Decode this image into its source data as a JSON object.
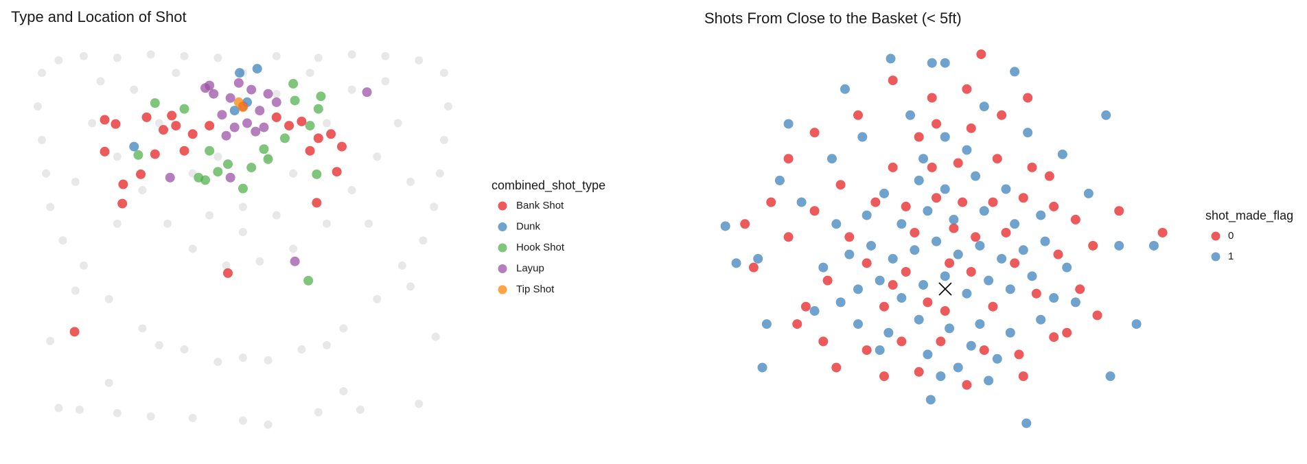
{
  "chart_data": [
    {
      "type": "scatter",
      "title": "Type and Location of Shot",
      "legend_title": "combined_shot_type",
      "legend": "right",
      "xlim": [
        -250,
        250
      ],
      "ylim": [
        -70,
        390
      ],
      "yreverse": true,
      "series": [
        {
          "color": "#bdbdbd",
          "x": [
            -240,
            -220,
            -190,
            -150,
            -110,
            -70,
            -30,
            40,
            90,
            130,
            170,
            210,
            240,
            -245,
            -240,
            -235,
            -230,
            -215,
            245,
            240,
            235,
            228,
            215,
            -190,
            -160,
            -120,
            -70,
            0,
            70,
            120,
            160,
            190,
            -200,
            200,
            -100,
            100,
            -30,
            30,
            -180,
            -150,
            -120,
            -90,
            -60,
            -20,
            20,
            60,
            100,
            130,
            160,
            185,
            -170,
            170,
            -100,
            100,
            -60,
            60,
            0,
            -30,
            30,
            -130,
            130,
            0,
            -40,
            40,
            -150,
            150,
            -200,
            200,
            -220,
            -195,
            -150,
            -110,
            -60,
            0,
            30,
            90,
            140,
            210,
            -160,
            120,
            230,
            -230,
            -40,
            40,
            0,
            -80,
            80
          ],
          "values": [
            -40,
            -55,
            -60,
            -58,
            -62,
            -60,
            -58,
            -60,
            -58,
            -62,
            -60,
            -55,
            -40,
            0,
            40,
            80,
            120,
            160,
            0,
            40,
            80,
            120,
            160,
            190,
            230,
            265,
            290,
            300,
            290,
            265,
            230,
            190,
            220,
            215,
            285,
            285,
            305,
            303,
            20,
            60,
            100,
            140,
            170,
            190,
            185,
            170,
            140,
            100,
            60,
            20,
            -30,
            -30,
            20,
            20,
            80,
            80,
            120,
            60,
            60,
            -20,
            -20,
            150,
            130,
            130,
            140,
            140,
            90,
            90,
            360,
            362,
            366,
            370,
            372,
            375,
            380,
            365,
            362,
            355,
            330,
            340,
            275,
            280,
            -20,
            -15,
            -40,
            -40,
            -40
          ]
        },
        {
          "name": "Bank Shot",
          "color": "#e41a1c",
          "x": [
            -165,
            -152,
            -165,
            -143,
            -144,
            -122,
            -105,
            -80,
            -70,
            -85,
            -60,
            -40,
            -18,
            -201,
            88,
            112,
            118,
            105,
            80,
            55,
            40,
            70,
            -115,
            -95,
            90
          ],
          "values": [
            16,
            21,
            54,
            93,
            116,
            81,
            57,
            23,
            53,
            11,
            33,
            23,
            199,
            269,
            115,
            78,
            48,
            33,
            53,
            23,
            13,
            18,
            13,
            28,
            38
          ]
        },
        {
          "name": "Dunk",
          "color": "#377eb8",
          "x": [
            -4,
            17,
            -130,
            5,
            -10
          ],
          "values": [
            -40,
            -45,
            48,
            -5,
            5
          ]
        },
        {
          "name": "Hook Shot",
          "color": "#4daf4a",
          "x": [
            93,
            60,
            90,
            80,
            50,
            30,
            10,
            0,
            -30,
            -53,
            -125,
            -105,
            88,
            78,
            -40,
            -70,
            25,
            -18,
            62,
            -45
          ],
          "values": [
            -12,
            -27,
            3,
            23,
            38,
            63,
            73,
            98,
            78,
            85,
            58,
            -4,
            81,
            208,
            53,
            3,
            51,
            69,
            -7,
            88
          ]
        },
        {
          "name": "Layup",
          "color": "#984ea3",
          "x": [
            0,
            -15,
            10,
            20,
            -25,
            -35,
            30,
            5,
            -10,
            15,
            -40,
            40,
            -5,
            25,
            -20,
            -87,
            -15,
            148,
            62,
            -45
          ],
          "values": [
            0,
            -10,
            -20,
            5,
            10,
            -15,
            -15,
            20,
            25,
            30,
            -25,
            -5,
            -28,
            25,
            35,
            85,
            85,
            -17,
            185,
            -22
          ]
        },
        {
          "name": "Tip Shot",
          "color": "#ff7f00",
          "x": [
            0,
            -5
          ],
          "values": [
            1,
            -5
          ]
        }
      ]
    },
    {
      "type": "scatter",
      "title": "Shots From Close to the Basket (< 5ft)",
      "legend_title": "shot_made_flag",
      "legend": "right",
      "xlim": [
        -52,
        52
      ],
      "ylim": [
        -35,
        58
      ],
      "yreverse": false,
      "series": [
        {
          "name": "0",
          "color": "#e41a1c",
          "x": [
            8.3,
            50,
            -12,
            -3,
            5,
            -36,
            -30,
            -40,
            -46,
            -44,
            -36,
            -32,
            -28,
            -25,
            -27,
            -22,
            -18,
            -14,
            -9,
            -4,
            1,
            6,
            11,
            16,
            21,
            26,
            31,
            35,
            34,
            40,
            -16,
            -9,
            -2,
            4,
            11,
            18,
            25,
            -12,
            -3,
            3,
            12,
            20,
            -6,
            6,
            13,
            -18,
            -10,
            -1,
            9,
            17,
            25,
            -14,
            -6,
            5,
            18,
            -24,
            24,
            -30,
            30,
            -20,
            19,
            28,
            -34,
            -2,
            7,
            -7,
            0,
            2,
            -12,
            14
          ],
          "values": [
            54,
            13,
            48,
            44,
            46,
            30,
            36,
            20,
            15,
            5,
            12,
            -4,
            -12,
            -18,
            2,
            12,
            6,
            -4,
            4,
            -3,
            6,
            4,
            -4,
            6,
            -1,
            8,
            0,
            -6,
            10,
            18,
            20,
            19,
            21,
            20,
            20,
            21,
            19,
            28,
            28,
            29,
            30,
            28,
            35,
            37,
            40,
            -14,
            -12,
            -12,
            -14,
            -15,
            -11,
            -20,
            -19,
            -22,
            -20,
            24,
            26,
            18,
            16,
            40,
            44,
            -10,
            -8,
            38,
            12,
            13,
            -5,
            14,
            1,
            13
          ]
        },
        {
          "name": "1",
          "color": "#377eb8",
          "x": [
            -3.3,
            18.7,
            -12.5,
            -3,
            0,
            -50.5,
            -48,
            -43,
            -41,
            -24,
            -20,
            -15,
            -10,
            -5,
            0,
            5,
            10,
            15,
            20,
            25,
            -22,
            -17,
            -12,
            -7,
            -2,
            3,
            8,
            13,
            18,
            23,
            -25,
            -18,
            -10,
            -4,
            2,
            9,
            16,
            22,
            -14,
            -6,
            0,
            7,
            14,
            -20,
            -13,
            -6,
            1,
            8,
            15,
            22,
            -15,
            -4,
            6,
            12,
            -1,
            10,
            3,
            -28,
            28,
            30,
            -30,
            -33,
            33,
            -26,
            27,
            -19,
            19,
            -8,
            9,
            -36,
            37,
            -23,
            16,
            40,
            44,
            48,
            -42,
            -38,
            38,
            0,
            -5,
            5
          ],
          "values": [
            -25.4,
            -30.8,
            53,
            52,
            52,
            14.5,
            6,
            7,
            -8,
            -3,
            0,
            2,
            -2,
            1,
            3,
            -1,
            2,
            0,
            3,
            -2,
            8,
            10,
            7,
            9,
            11,
            8,
            10,
            7,
            9,
            11,
            15,
            17,
            15,
            18,
            16,
            18,
            15,
            17,
            22,
            25,
            23,
            26,
            23,
            -8,
            -10,
            -7,
            -9,
            -8,
            -10,
            -7,
            -14,
            -15,
            -13,
            -16,
            -20,
            -21,
            -18,
            5,
            5,
            -3,
            -5,
            20,
            22,
            30,
            31,
            35,
            36,
            40,
            42,
            38,
            40,
            46,
            50,
            10,
            -8,
            10,
            -18,
            25,
            -20,
            35,
            30,
            32
          ]
        }
      ]
    }
  ]
}
